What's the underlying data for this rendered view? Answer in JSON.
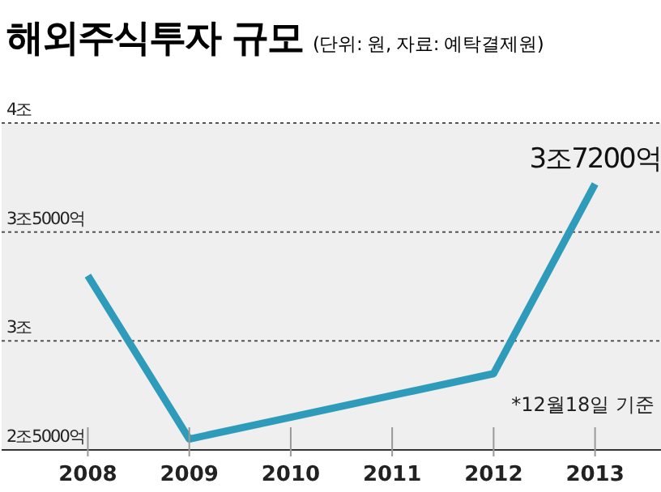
{
  "chart_data": {
    "type": "line",
    "title": "해외주식투자 규모",
    "subtitle": "(단위: 원, 자료: 예탁결제원)",
    "categories": [
      "2008",
      "2009",
      "2010",
      "2011",
      "2012",
      "2013"
    ],
    "series": [
      {
        "color": "#2f9bbb",
        "values": [
          3.3,
          2.55,
          2.65,
          2.75,
          2.85,
          3.72
        ]
      }
    ],
    "ylim": [
      2.5,
      4
    ],
    "yticks": [
      {
        "value": 2.5,
        "label": "2조5000억"
      },
      {
        "value": 3,
        "label": "3조"
      },
      {
        "value": 3.5,
        "label": "3조5000억"
      },
      {
        "value": 4,
        "label": "4조"
      }
    ],
    "grid": "y",
    "marker": "none",
    "line_style": "solid",
    "legend": false,
    "annotations": [
      {
        "text": "3조7200억",
        "x": "2013",
        "y": 3.72
      },
      "*12월18일 기준"
    ]
  }
}
